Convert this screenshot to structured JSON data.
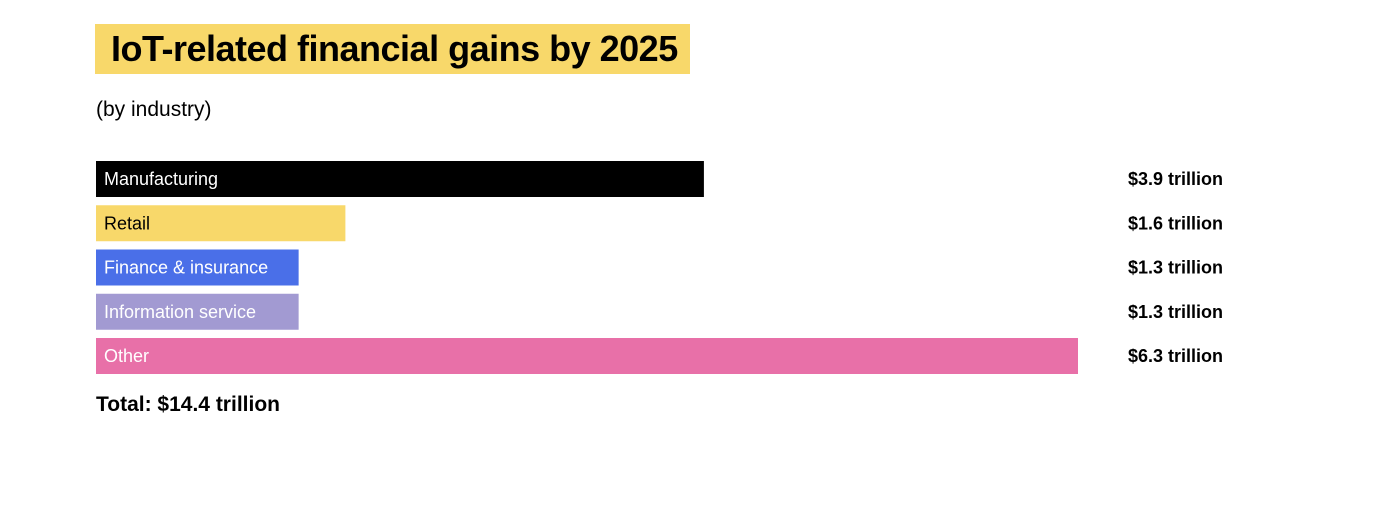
{
  "chart_data": {
    "type": "bar",
    "orientation": "horizontal",
    "title": "IoT-related financial gains by 2025",
    "subtitle": "(by industry)",
    "title_highlight_color": "#F8D86A",
    "categories": [
      "Manufacturing",
      "Retail",
      "Finance & insurance",
      "Information service",
      "Other"
    ],
    "values": [
      3.9,
      1.6,
      1.3,
      1.3,
      6.3
    ],
    "value_labels": [
      "$3.9 trillion",
      "$1.6 trillion",
      "$1.3 trillion",
      "$1.3 trillion",
      "$6.3 trillion"
    ],
    "colors": [
      "#000000",
      "#F8D86A",
      "#4A6FE8",
      "#A29AD2",
      "#E870A8"
    ],
    "label_colors": [
      "#ffffff",
      "#000000",
      "#ffffff",
      "#ffffff",
      "#ffffff"
    ],
    "unit": "trillion USD",
    "xlim": [
      0,
      6.3
    ],
    "grid": false,
    "total": "Total: $14.4 trillion"
  }
}
